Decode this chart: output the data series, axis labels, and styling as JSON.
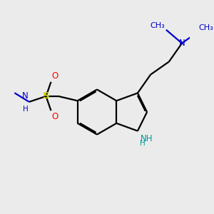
{
  "bg_color": "#ebebeb",
  "bond_color": "#000000",
  "N_color": "#0000cc",
  "NH_color": "#009999",
  "O_color": "#ff0000",
  "S_color": "#cccc00",
  "line_width": 1.6,
  "font_size": 8.5,
  "figsize": [
    3.0,
    3.0
  ],
  "dpi": 100,
  "xlim": [
    0,
    3.0
  ],
  "ylim": [
    0,
    3.0
  ]
}
